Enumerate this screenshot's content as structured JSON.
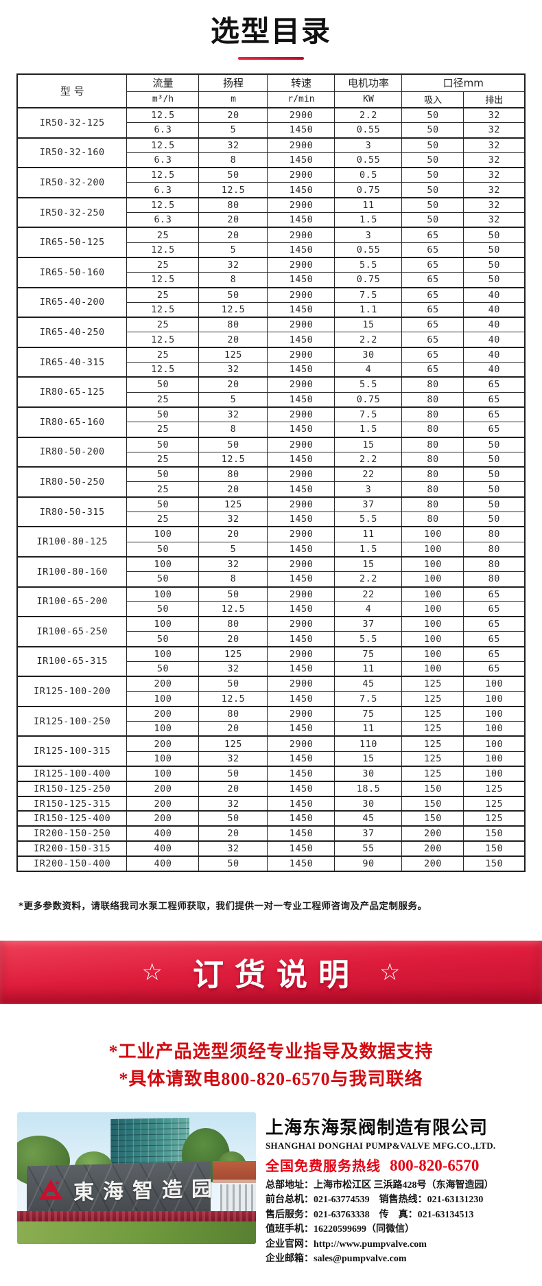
{
  "page": {
    "title": "选型目录"
  },
  "table": {
    "headers": {
      "model": "型 号",
      "flow": "流量",
      "flow_unit": "m³/h",
      "head": "扬程",
      "head_unit": "m",
      "speed": "转速",
      "speed_unit": "r/min",
      "power": "电机功率",
      "power_unit": "KW",
      "diameter": "口径mm",
      "suction": "吸入",
      "discharge": "排出"
    },
    "rows": [
      {
        "model": "IR50-32-125",
        "specs": [
          [
            "12.5",
            "20",
            "2900",
            "2.2",
            "50",
            "32"
          ],
          [
            "6.3",
            "5",
            "1450",
            "0.55",
            "50",
            "32"
          ]
        ]
      },
      {
        "model": "IR50-32-160",
        "specs": [
          [
            "12.5",
            "32",
            "2900",
            "3",
            "50",
            "32"
          ],
          [
            "6.3",
            "8",
            "1450",
            "0.55",
            "50",
            "32"
          ]
        ]
      },
      {
        "model": "IR50-32-200",
        "specs": [
          [
            "12.5",
            "50",
            "2900",
            "0.5",
            "50",
            "32"
          ],
          [
            "6.3",
            "12.5",
            "1450",
            "0.75",
            "50",
            "32"
          ]
        ]
      },
      {
        "model": "IR50-32-250",
        "specs": [
          [
            "12.5",
            "80",
            "2900",
            "11",
            "50",
            "32"
          ],
          [
            "6.3",
            "20",
            "1450",
            "1.5",
            "50",
            "32"
          ]
        ]
      },
      {
        "model": "IR65-50-125",
        "specs": [
          [
            "25",
            "20",
            "2900",
            "3",
            "65",
            "50"
          ],
          [
            "12.5",
            "5",
            "1450",
            "0.55",
            "65",
            "50"
          ]
        ]
      },
      {
        "model": "IR65-50-160",
        "specs": [
          [
            "25",
            "32",
            "2900",
            "5.5",
            "65",
            "50"
          ],
          [
            "12.5",
            "8",
            "1450",
            "0.75",
            "65",
            "50"
          ]
        ]
      },
      {
        "model": "IR65-40-200",
        "specs": [
          [
            "25",
            "50",
            "2900",
            "7.5",
            "65",
            "40"
          ],
          [
            "12.5",
            "12.5",
            "1450",
            "1.1",
            "65",
            "40"
          ]
        ]
      },
      {
        "model": "IR65-40-250",
        "specs": [
          [
            "25",
            "80",
            "2900",
            "15",
            "65",
            "40"
          ],
          [
            "12.5",
            "20",
            "1450",
            "2.2",
            "65",
            "40"
          ]
        ]
      },
      {
        "model": "IR65-40-315",
        "specs": [
          [
            "25",
            "125",
            "2900",
            "30",
            "65",
            "40"
          ],
          [
            "12.5",
            "32",
            "1450",
            "4",
            "65",
            "40"
          ]
        ]
      },
      {
        "model": "IR80-65-125",
        "specs": [
          [
            "50",
            "20",
            "2900",
            "5.5",
            "80",
            "65"
          ],
          [
            "25",
            "5",
            "1450",
            "0.75",
            "80",
            "65"
          ]
        ]
      },
      {
        "model": "IR80-65-160",
        "specs": [
          [
            "50",
            "32",
            "2900",
            "7.5",
            "80",
            "65"
          ],
          [
            "25",
            "8",
            "1450",
            "1.5",
            "80",
            "65"
          ]
        ]
      },
      {
        "model": "IR80-50-200",
        "specs": [
          [
            "50",
            "50",
            "2900",
            "15",
            "80",
            "50"
          ],
          [
            "25",
            "12.5",
            "1450",
            "2.2",
            "80",
            "50"
          ]
        ]
      },
      {
        "model": "IR80-50-250",
        "specs": [
          [
            "50",
            "80",
            "2900",
            "22",
            "80",
            "50"
          ],
          [
            "25",
            "20",
            "1450",
            "3",
            "80",
            "50"
          ]
        ]
      },
      {
        "model": "IR80-50-315",
        "specs": [
          [
            "50",
            "125",
            "2900",
            "37",
            "80",
            "50"
          ],
          [
            "25",
            "32",
            "1450",
            "5.5",
            "80",
            "50"
          ]
        ]
      },
      {
        "model": "IR100-80-125",
        "specs": [
          [
            "100",
            "20",
            "2900",
            "11",
            "100",
            "80"
          ],
          [
            "50",
            "5",
            "1450",
            "1.5",
            "100",
            "80"
          ]
        ]
      },
      {
        "model": "IR100-80-160",
        "specs": [
          [
            "100",
            "32",
            "2900",
            "15",
            "100",
            "80"
          ],
          [
            "50",
            "8",
            "1450",
            "2.2",
            "100",
            "80"
          ]
        ]
      },
      {
        "model": "IR100-65-200",
        "specs": [
          [
            "100",
            "50",
            "2900",
            "22",
            "100",
            "65"
          ],
          [
            "50",
            "12.5",
            "1450",
            "4",
            "100",
            "65"
          ]
        ]
      },
      {
        "model": "IR100-65-250",
        "specs": [
          [
            "100",
            "80",
            "2900",
            "37",
            "100",
            "65"
          ],
          [
            "50",
            "20",
            "1450",
            "5.5",
            "100",
            "65"
          ]
        ]
      },
      {
        "model": "IR100-65-315",
        "specs": [
          [
            "100",
            "125",
            "2900",
            "75",
            "100",
            "65"
          ],
          [
            "50",
            "32",
            "1450",
            "11",
            "100",
            "65"
          ]
        ]
      },
      {
        "model": "IR125-100-200",
        "specs": [
          [
            "200",
            "50",
            "2900",
            "45",
            "125",
            "100"
          ],
          [
            "100",
            "12.5",
            "1450",
            "7.5",
            "125",
            "100"
          ]
        ]
      },
      {
        "model": "IR125-100-250",
        "specs": [
          [
            "200",
            "80",
            "2900",
            "75",
            "125",
            "100"
          ],
          [
            "100",
            "20",
            "1450",
            "11",
            "125",
            "100"
          ]
        ]
      },
      {
        "model": "IR125-100-315",
        "specs": [
          [
            "200",
            "125",
            "2900",
            "110",
            "125",
            "100"
          ],
          [
            "100",
            "32",
            "1450",
            "15",
            "125",
            "100"
          ]
        ]
      },
      {
        "model": "IR125-100-400",
        "specs": [
          [
            "100",
            "50",
            "1450",
            "30",
            "125",
            "100"
          ]
        ]
      },
      {
        "model": "IR150-125-250",
        "specs": [
          [
            "200",
            "20",
            "1450",
            "18.5",
            "150",
            "125"
          ]
        ]
      },
      {
        "model": "IR150-125-315",
        "specs": [
          [
            "200",
            "32",
            "1450",
            "30",
            "150",
            "125"
          ]
        ]
      },
      {
        "model": "IR150-125-400",
        "specs": [
          [
            "200",
            "50",
            "1450",
            "45",
            "150",
            "125"
          ]
        ]
      },
      {
        "model": "IR200-150-250",
        "specs": [
          [
            "400",
            "20",
            "1450",
            "37",
            "200",
            "150"
          ]
        ]
      },
      {
        "model": "IR200-150-315",
        "specs": [
          [
            "400",
            "32",
            "1450",
            "55",
            "200",
            "150"
          ]
        ]
      },
      {
        "model": "IR200-150-400",
        "specs": [
          [
            "400",
            "50",
            "1450",
            "90",
            "200",
            "150"
          ]
        ]
      }
    ],
    "footnote": "*更多参数资料，请联络我司水泵工程师获取，我们提供一对一专业工程师咨询及产品定制服务。"
  },
  "order_section": {
    "star": "☆",
    "banner_title": "订货说明",
    "lines": [
      "*工业产品选型须经专业指导及数据支持",
      "*具体请致电800-820-6570与我司联络"
    ]
  },
  "company": {
    "name_cn": "上海东海泵阀制造有限公司",
    "name_en": "SHANGHAI DONGHAI PUMP&VALVE MFG.CO.,LTD.",
    "hotline_label": "全国免费服务热线",
    "hotline_number": "800-820-6570",
    "contact_lines": [
      "总部地址：上海市松江区 三浜路428号（东海智造园）",
      "前台总机：021-63774539　销售热线：021-63131230",
      "售后服务：021-63763338　传　真：021-63134513",
      "值班手机：16220599699（同微信）",
      "企业官网：http://www.pumpvalve.com",
      "企业邮箱：sales@pumpvalve.com"
    ],
    "photo_sign_text": "東海智造园"
  },
  "colors": {
    "banner_red": "#dd1c3b",
    "accent_red": "#d20a10",
    "hotline_red": "#e50113",
    "underline_red": "#c8102e"
  }
}
